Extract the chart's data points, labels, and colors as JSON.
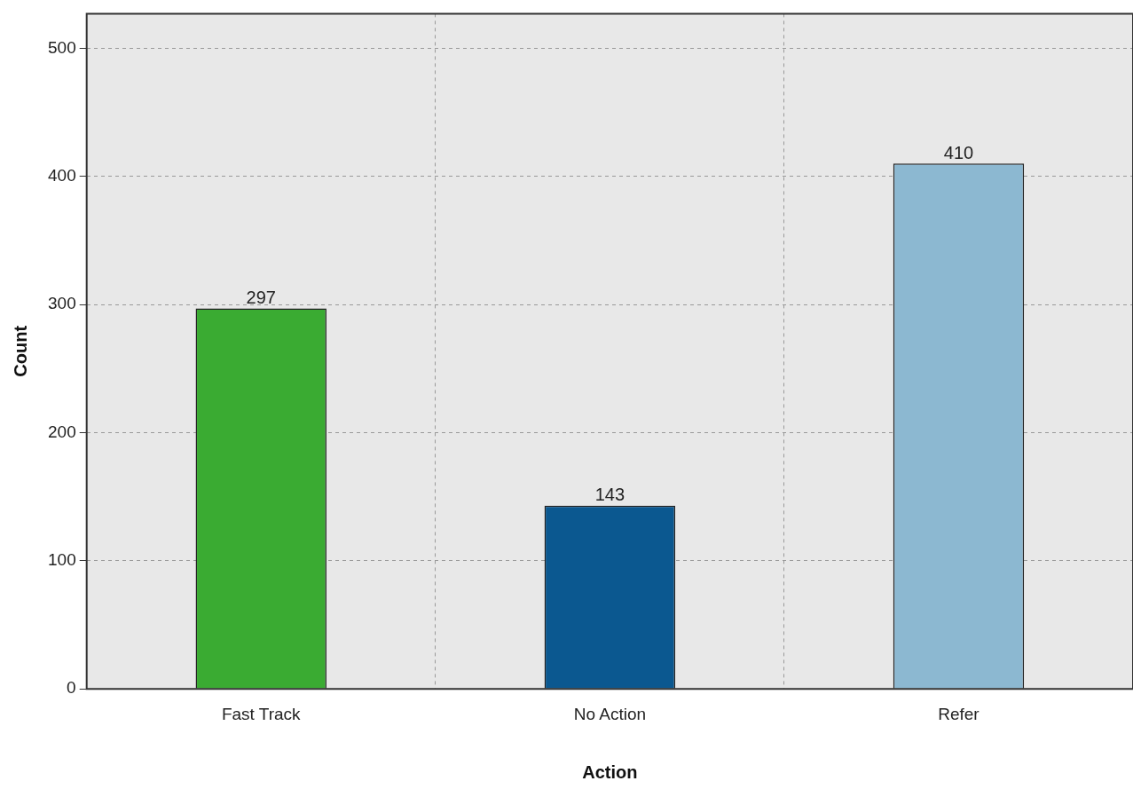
{
  "chart_data": {
    "type": "bar",
    "xlabel": "Action",
    "ylabel": "Count",
    "categories": [
      "Fast Track",
      "No Action",
      "Refer"
    ],
    "values": [
      297,
      143,
      410
    ],
    "colors": [
      "#3aab32",
      "#0b5890",
      "#8cb8d1"
    ],
    "ylim": [
      0,
      527
    ],
    "yticks": [
      0,
      100,
      200,
      300,
      400,
      500
    ],
    "grid": true,
    "data_labels": true
  }
}
